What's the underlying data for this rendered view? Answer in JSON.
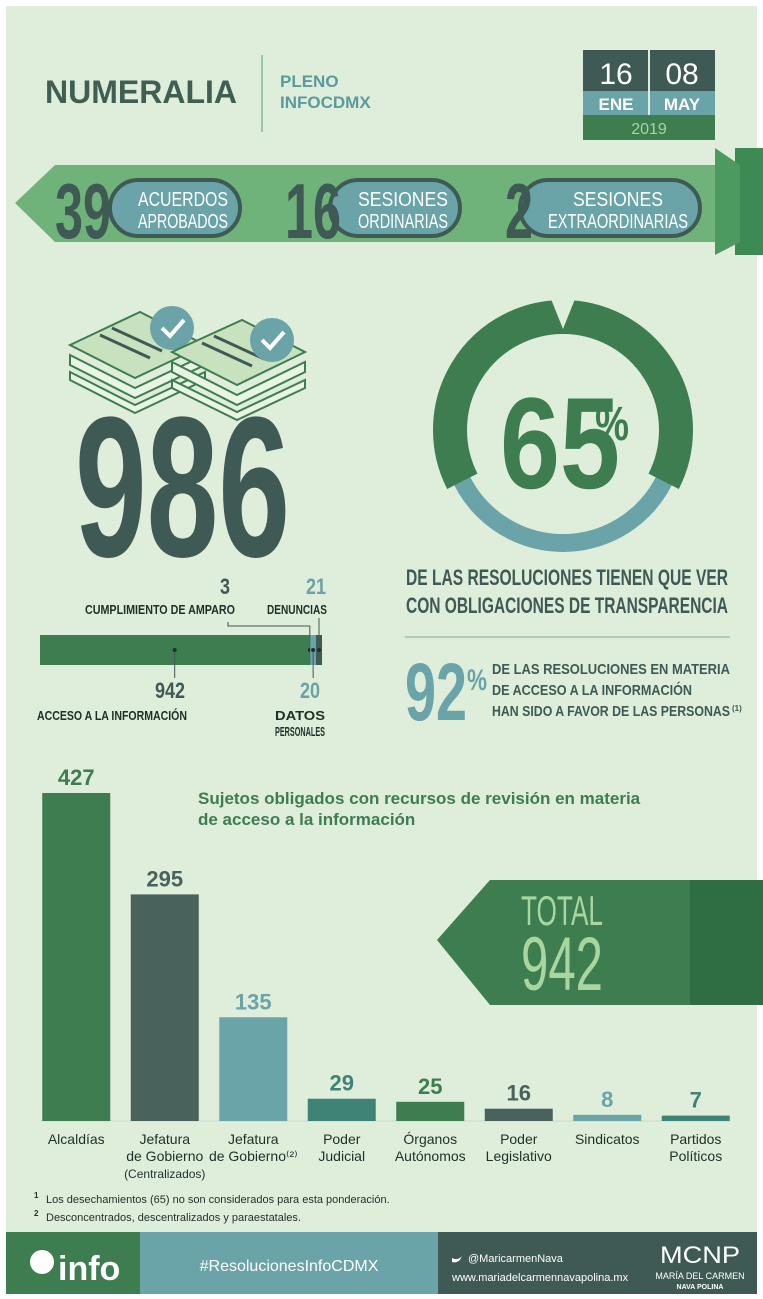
{
  "header": {
    "title": "NUMERALIA",
    "subtitle": [
      "PLENO",
      "INFOCDMX"
    ]
  },
  "dates": {
    "start": {
      "day": "16",
      "month": "ENE"
    },
    "end": {
      "day": "08",
      "month": "MAY"
    },
    "year": "2019"
  },
  "summary": [
    {
      "value": 39,
      "label": [
        "ACUERDOS",
        "APROBADOS"
      ]
    },
    {
      "value": 16,
      "label": [
        "SESIONES",
        "ORDINARIAS"
      ]
    },
    {
      "value": 2,
      "label": [
        "SESIONES",
        "EXTRAORDINARIAS"
      ]
    }
  ],
  "resolutions_total": 986,
  "transparency": {
    "value": 65,
    "unit": "%",
    "text": [
      "DE LAS RESOLUCIONES TIENEN QUE VER",
      "CON OBLIGACIONES DE TRANSPARENCIA"
    ]
  },
  "favor": {
    "value": 92,
    "unit": "%",
    "text": [
      "DE LAS RESOLUCIONES EN MATERIA",
      "DE ACCESO A LA INFORMACIÓN",
      "HAN SIDO A FAVOR DE LAS PERSONAS"
    ],
    "note": "(1)"
  },
  "chart_data": [
    {
      "type": "stacked-bar",
      "orientation": "horizontal",
      "categories": [
        [
          "ACCESO A LA INFORMACIÓN"
        ],
        [
          "CUMPLIMIENTO DE AMPARO"
        ],
        [
          "DATOS",
          "PERSONALES"
        ],
        [
          "DENUNCIAS"
        ]
      ],
      "values": [
        942,
        3,
        20,
        21
      ],
      "colors": [
        "#3e7d50",
        "#3f5a54",
        "#6aa3a8",
        "#3f5a54"
      ]
    },
    {
      "type": "bar",
      "title": [
        "Sujetos obligados con recursos de revisión en materia",
        "de acceso a la información"
      ],
      "categories": [
        [
          "Alcaldías"
        ],
        [
          "Jefatura",
          "de Gobierno",
          "(Centralizados)"
        ],
        [
          "Jefatura",
          "de Gobierno⁽²⁾"
        ],
        [
          "Poder",
          "Judicial"
        ],
        [
          "Órganos",
          "Autónomos"
        ],
        [
          "Poder",
          "Legislativo"
        ],
        [
          "Sindicatos"
        ],
        [
          "Partidos",
          "Políticos"
        ]
      ],
      "values": [
        427,
        295,
        135,
        29,
        25,
        16,
        8,
        7
      ],
      "colors": [
        "#3e7d50",
        "#4a625c",
        "#6aa3a8",
        "#3f8377",
        "#3e7d50",
        "#4a625c",
        "#6aa3a8",
        "#3f8377"
      ]
    }
  ],
  "total": {
    "label": "TOTAL",
    "value": 942
  },
  "footnotes": [
    {
      "marker": "1",
      "text": "Los desechamientos (65) no son considerados para esta ponderación."
    },
    {
      "marker": "2",
      "text": "Desconcentrados, descentralizados y paraestatales."
    }
  ],
  "footer": {
    "brand": "info",
    "hashtag": "#ResolucionesInfoCDMX",
    "twitter": "@MaricarmenNava",
    "website": "www.mariadelcarmennavapolina.mx",
    "logo": "MCNP",
    "name": "MARÍA DEL CARMEN",
    "surname": "NAVA POLINA"
  }
}
